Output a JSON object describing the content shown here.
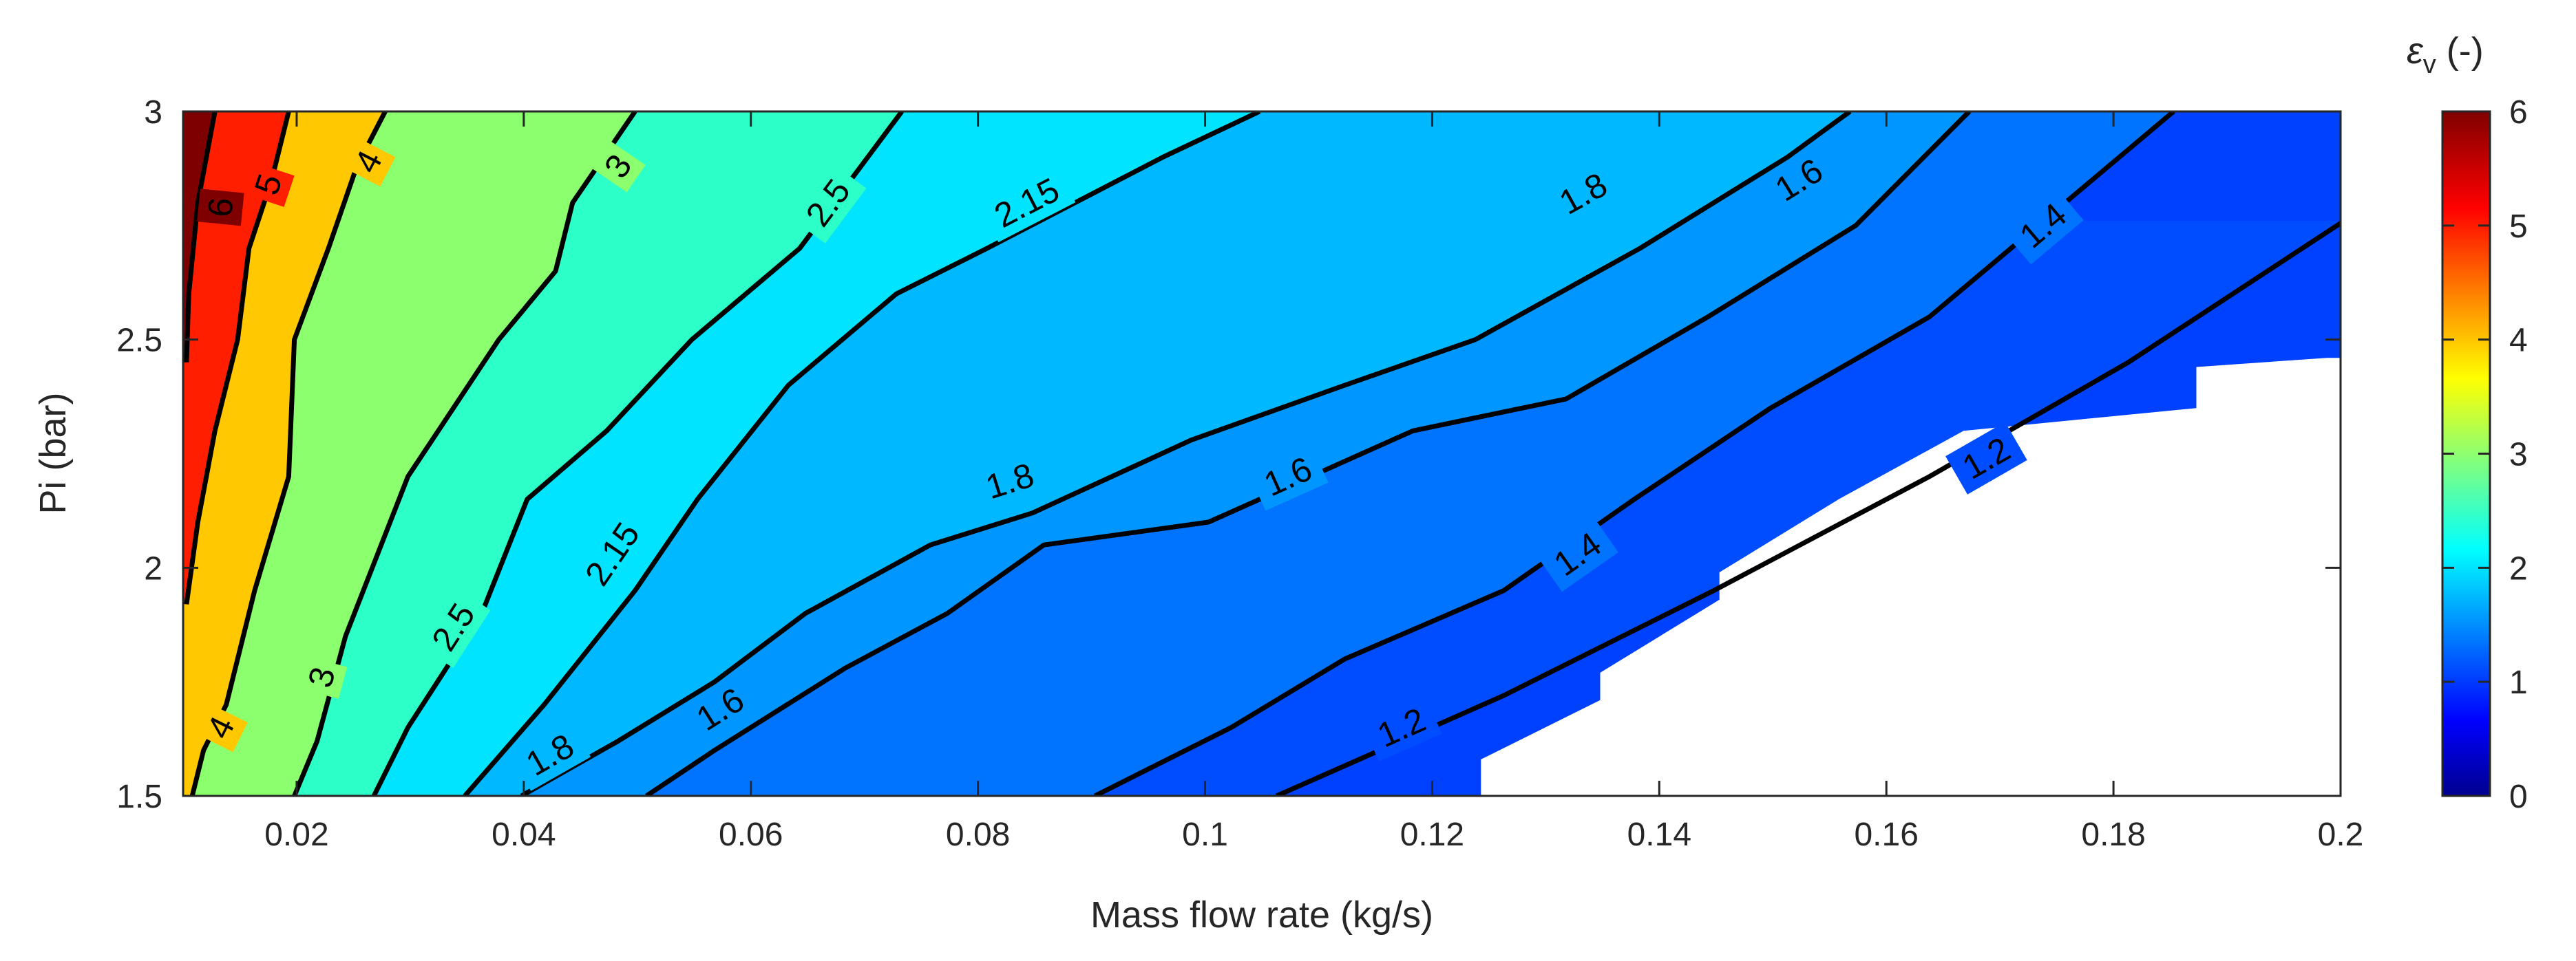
{
  "chart_data": {
    "type": "contour",
    "xlabel": "Mass flow rate (kg/s)",
    "ylabel": "Pi (bar)",
    "colorbar_label": "εv (-)",
    "colorbar_label_symbol": "ε",
    "colorbar_label_sub": "v",
    "colorbar_label_unit": " (-)",
    "xlim": [
      0.01,
      0.2
    ],
    "ylim": [
      1.5,
      3
    ],
    "clim": [
      0,
      6
    ],
    "colormap": "jet",
    "x_ticks": [
      "0.02",
      "0.04",
      "0.06",
      "0.08",
      "0.1",
      "0.12",
      "0.14",
      "0.16",
      "0.18",
      "0.2"
    ],
    "x_tick_values": [
      0.02,
      0.04,
      0.06,
      0.08,
      0.1,
      0.12,
      0.14,
      0.16,
      0.18,
      0.2
    ],
    "y_ticks": [
      "1.5",
      "2",
      "2.5",
      "3"
    ],
    "y_tick_values": [
      1.5,
      2,
      2.5,
      3
    ],
    "colorbar_ticks": [
      "0",
      "1",
      "2",
      "3",
      "4",
      "5",
      "6"
    ],
    "colorbar_tick_values": [
      0,
      1,
      2,
      3,
      4,
      5,
      6
    ],
    "contour_levels": [
      {
        "value": 6,
        "label": "6",
        "fill": "#7f0000",
        "points": [
          [
            0.0103,
            2.45
          ],
          [
            0.0105,
            2.6
          ],
          [
            0.0113,
            2.8
          ],
          [
            0.0128,
            3.0
          ]
        ],
        "labels": [
          {
            "x": 0.0133,
            "y": 2.79
          }
        ]
      },
      {
        "value": 5,
        "label": "5",
        "fill": "#ff1e00",
        "points": [
          [
            0.0103,
            1.92
          ],
          [
            0.0113,
            2.1
          ],
          [
            0.0128,
            2.3
          ],
          [
            0.0148,
            2.5
          ],
          [
            0.0158,
            2.7
          ],
          [
            0.0178,
            2.85
          ],
          [
            0.0193,
            3.0
          ]
        ],
        "labels": [
          {
            "x": 0.0175,
            "y": 2.84
          }
        ]
      },
      {
        "value": 4,
        "label": "4",
        "fill": "#ffc800",
        "points": [
          [
            0.0108,
            1.5
          ],
          [
            0.0118,
            1.6
          ],
          [
            0.0138,
            1.7
          ],
          [
            0.0163,
            1.95
          ],
          [
            0.0193,
            2.2
          ],
          [
            0.0198,
            2.5
          ],
          [
            0.0228,
            2.7
          ],
          [
            0.0253,
            2.88
          ],
          [
            0.0278,
            3.0
          ]
        ],
        "labels": [
          {
            "x": 0.0133,
            "y": 1.65
          },
          {
            "x": 0.0263,
            "y": 2.89
          }
        ]
      },
      {
        "value": 3,
        "label": "3",
        "fill": "#8cff6e",
        "points": [
          [
            0.0198,
            1.5
          ],
          [
            0.0218,
            1.62
          ],
          [
            0.0243,
            1.85
          ],
          [
            0.0298,
            2.2
          ],
          [
            0.0338,
            2.35
          ],
          [
            0.0378,
            2.5
          ],
          [
            0.0428,
            2.65
          ],
          [
            0.0443,
            2.8
          ],
          [
            0.0498,
            3.0
          ]
        ],
        "labels": [
          {
            "x": 0.0222,
            "y": 1.76
          },
          {
            "x": 0.0483,
            "y": 2.88
          }
        ]
      },
      {
        "value": 2.5,
        "label": "2.5",
        "fill": "#2cffc7",
        "points": [
          [
            0.0268,
            1.5
          ],
          [
            0.0298,
            1.65
          ],
          [
            0.0363,
            1.9
          ],
          [
            0.0403,
            2.15
          ],
          [
            0.0473,
            2.3
          ],
          [
            0.0548,
            2.5
          ],
          [
            0.0643,
            2.7
          ],
          [
            0.0733,
            3.0
          ]
        ],
        "labels": [
          {
            "x": 0.0338,
            "y": 1.87
          },
          {
            "x": 0.0668,
            "y": 2.8
          }
        ]
      },
      {
        "value": 2.15,
        "label": "2.15",
        "fill": "#00e4ff",
        "points": [
          [
            0.0348,
            1.5
          ],
          [
            0.0418,
            1.7
          ],
          [
            0.0498,
            1.95
          ],
          [
            0.0553,
            2.15
          ],
          [
            0.0633,
            2.4
          ],
          [
            0.0728,
            2.6
          ],
          [
            0.0808,
            2.7
          ],
          [
            0.0963,
            2.9
          ],
          [
            0.1048,
            3.0
          ]
        ],
        "labels": [
          {
            "x": 0.0478,
            "y": 2.03
          },
          {
            "x": 0.0843,
            "y": 2.8
          }
        ]
      },
      {
        "value": 1.8,
        "label": "1.8",
        "fill": "#00b8ff",
        "points": [
          [
            0.0398,
            1.5
          ],
          [
            0.0483,
            1.62
          ],
          [
            0.0568,
            1.75
          ],
          [
            0.0648,
            1.9
          ],
          [
            0.0758,
            2.05
          ],
          [
            0.0848,
            2.12
          ],
          [
            0.0988,
            2.28
          ],
          [
            0.1123,
            2.4
          ],
          [
            0.1238,
            2.5
          ],
          [
            0.1383,
            2.7
          ],
          [
            0.1513,
            2.9
          ],
          [
            0.1568,
            3.0
          ]
        ],
        "labels": [
          {
            "x": 0.0423,
            "y": 1.59
          },
          {
            "x": 0.0828,
            "y": 2.19
          },
          {
            "x": 0.1333,
            "y": 2.82
          }
        ]
      },
      {
        "value": 1.6,
        "label": "1.6",
        "fill": "#0096ff",
        "points": [
          [
            0.0508,
            1.5
          ],
          [
            0.0568,
            1.6
          ],
          [
            0.0683,
            1.78
          ],
          [
            0.0773,
            1.9
          ],
          [
            0.0858,
            2.05
          ],
          [
            0.1003,
            2.1
          ],
          [
            0.1183,
            2.3
          ],
          [
            0.1318,
            2.37
          ],
          [
            0.1443,
            2.55
          ],
          [
            0.1573,
            2.75
          ],
          [
            0.1673,
            3.0
          ]
        ],
        "labels": [
          {
            "x": 0.0573,
            "y": 1.69
          },
          {
            "x": 0.1073,
            "y": 2.2
          },
          {
            "x": 0.1523,
            "y": 2.85
          }
        ]
      },
      {
        "value": 1.4,
        "label": "1.4",
        "fill": "#0073ff",
        "points": [
          [
            0.0903,
            1.5
          ],
          [
            0.1023,
            1.65
          ],
          [
            0.1123,
            1.8
          ],
          [
            0.1263,
            1.95
          ],
          [
            0.1378,
            2.15
          ],
          [
            0.1498,
            2.35
          ],
          [
            0.1638,
            2.55
          ],
          [
            0.1853,
            3.0
          ]
        ],
        "labels": [
          {
            "x": 0.1328,
            "y": 2.03
          },
          {
            "x": 0.1738,
            "y": 2.75
          }
        ]
      },
      {
        "value": 1.2,
        "label": "1.2",
        "fill": "#004cff",
        "points": [
          [
            0.1063,
            1.5
          ],
          [
            0.1263,
            1.72
          ],
          [
            0.1448,
            1.95
          ],
          [
            0.1638,
            2.2
          ],
          [
            0.1813,
            2.45
          ],
          [
            0.2003,
            2.76
          ]
        ],
        "labels": [
          {
            "x": 0.1173,
            "y": 1.65
          },
          {
            "x": 0.1688,
            "y": 2.24
          }
        ]
      }
    ],
    "background_fill": "#0040ff",
    "invalid_region": [
      [
        0.1243,
        1.5
      ],
      [
        0.1243,
        1.58
      ],
      [
        0.1348,
        1.71
      ],
      [
        0.1348,
        1.77
      ],
      [
        0.1453,
        1.93
      ],
      [
        0.1453,
        1.99
      ],
      [
        0.1558,
        2.15
      ],
      [
        0.1668,
        2.3
      ],
      [
        0.1873,
        2.35
      ],
      [
        0.1873,
        2.44
      ],
      [
        0.1988,
        2.46
      ],
      [
        0.2003,
        2.46
      ],
      [
        0.2003,
        1.5
      ]
    ]
  }
}
